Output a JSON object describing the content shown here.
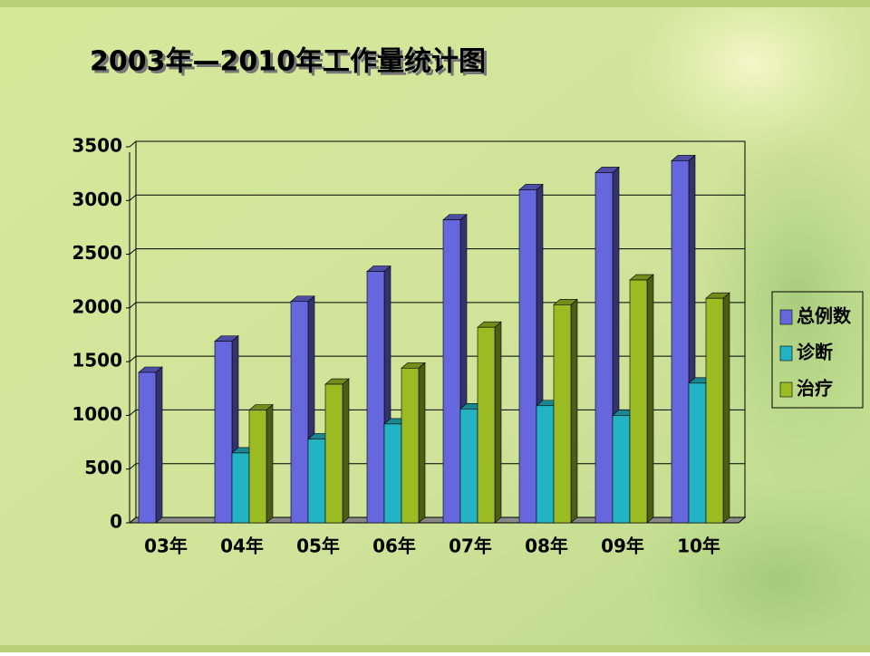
{
  "chart_data": {
    "type": "bar3d",
    "title": "2003年—2010年工作量统计图",
    "categories": [
      "03年",
      "04年",
      "05年",
      "06年",
      "07年",
      "08年",
      "09年",
      "10年"
    ],
    "series": [
      {
        "name": "总例数",
        "color": "#6666dd",
        "values": [
          1400,
          1690,
          2060,
          2340,
          2820,
          3100,
          3260,
          3370
        ]
      },
      {
        "name": "诊断",
        "color": "#22b4c4",
        "values": [
          null,
          650,
          780,
          920,
          1060,
          1090,
          1000,
          1300
        ]
      },
      {
        "name": "治疗",
        "color": "#9abb22",
        "values": [
          null,
          1050,
          1290,
          1440,
          1820,
          2030,
          2260,
          2090
        ]
      }
    ],
    "ylim": [
      0,
      3500
    ],
    "yticks": [
      0,
      500,
      1000,
      1500,
      2000,
      2500,
      3000,
      3500
    ],
    "grid": true,
    "legend": "right"
  }
}
